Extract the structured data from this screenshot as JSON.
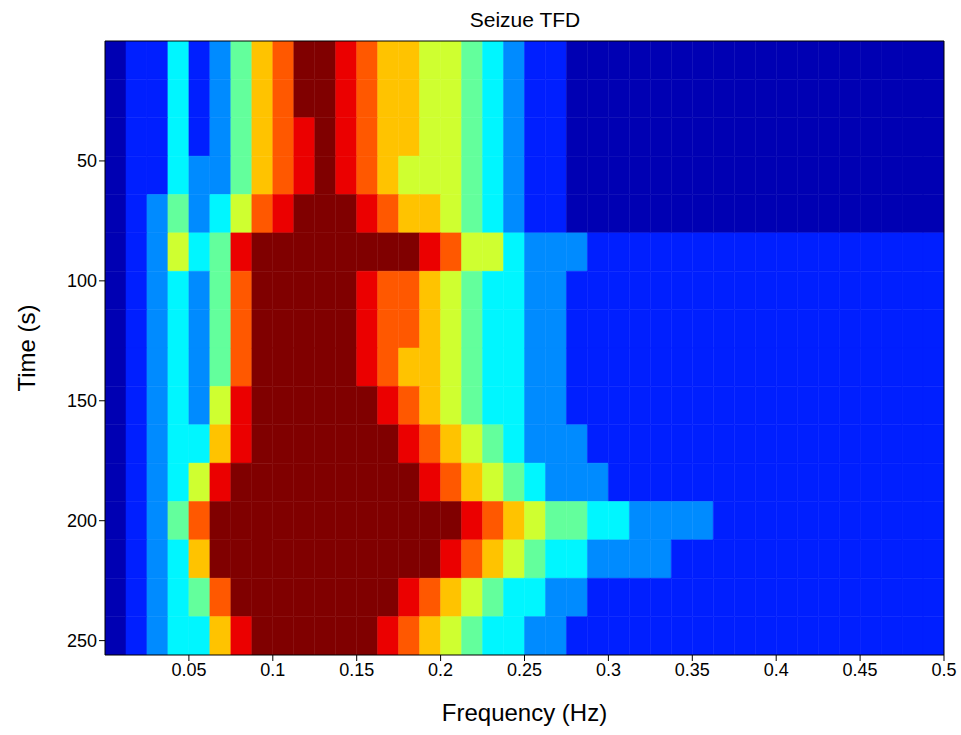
{
  "chart_data": {
    "type": "heatmap",
    "title": "Seizue TFD",
    "x_label": "Frequency (Hz)",
    "y_label": "Time (s)",
    "xlim": [
      0,
      0.5
    ],
    "xticks": [
      0.05,
      0.1,
      0.15,
      0.2,
      0.25,
      0.3,
      0.35,
      0.4,
      0.45,
      0.5
    ],
    "ylim": [
      0,
      256
    ],
    "yticks": [
      50,
      100,
      150,
      200,
      250
    ],
    "freq_bins": [
      0,
      0.0125,
      0.025,
      0.0375,
      0.05,
      0.0625,
      0.075,
      0.0875,
      0.1,
      0.1125,
      0.125,
      0.1375,
      0.15,
      0.1625,
      0.175,
      0.1875,
      0.2,
      0.2125,
      0.225,
      0.2375,
      0.25,
      0.2625,
      0.275,
      0.2875,
      0.3,
      0.3125,
      0.325,
      0.3375,
      0.35,
      0.3625,
      0.375,
      0.3875,
      0.4,
      0.4125,
      0.425,
      0.4375,
      0.45,
      0.4625,
      0.475,
      0.4875,
      0.5
    ],
    "time_bins": [
      0,
      16,
      32,
      48,
      64,
      80,
      96,
      112,
      128,
      144,
      160,
      176,
      192,
      208,
      224,
      240,
      256
    ],
    "cells": [
      [
        0,
        1,
        1,
        3,
        1,
        2,
        4,
        6,
        7,
        9,
        9,
        8,
        7,
        6,
        6,
        5,
        5,
        4,
        3,
        2,
        1,
        1,
        0,
        0,
        0,
        0,
        0,
        0,
        0,
        0,
        0,
        0,
        0,
        0,
        0,
        0,
        0,
        0,
        0,
        0
      ],
      [
        0,
        1,
        1,
        3,
        1,
        2,
        4,
        6,
        7,
        9,
        9,
        8,
        7,
        6,
        6,
        5,
        5,
        4,
        3,
        2,
        1,
        1,
        0,
        0,
        0,
        0,
        0,
        0,
        0,
        0,
        0,
        0,
        0,
        0,
        0,
        0,
        0,
        0,
        0,
        0
      ],
      [
        0,
        1,
        1,
        3,
        1,
        2,
        4,
        6,
        7,
        8,
        9,
        8,
        7,
        6,
        6,
        5,
        5,
        4,
        3,
        2,
        1,
        1,
        0,
        0,
        0,
        0,
        0,
        0,
        0,
        0,
        0,
        0,
        0,
        0,
        0,
        0,
        0,
        0,
        0,
        0
      ],
      [
        0,
        1,
        1,
        3,
        2,
        2,
        4,
        6,
        7,
        8,
        9,
        8,
        7,
        6,
        5,
        5,
        5,
        4,
        3,
        2,
        1,
        1,
        0,
        0,
        0,
        0,
        0,
        0,
        0,
        0,
        0,
        0,
        0,
        0,
        0,
        0,
        0,
        0,
        0,
        0
      ],
      [
        0,
        1,
        2,
        4,
        2,
        3,
        5,
        7,
        8,
        9,
        9,
        9,
        8,
        7,
        6,
        6,
        5,
        4,
        3,
        2,
        1,
        1,
        0,
        0,
        0,
        0,
        0,
        0,
        0,
        0,
        0,
        0,
        0,
        0,
        0,
        0,
        0,
        0,
        0,
        0
      ],
      [
        0,
        1,
        2,
        5,
        3,
        4,
        8,
        9,
        9,
        9,
        9,
        9,
        9,
        9,
        9,
        8,
        7,
        5,
        5,
        3,
        2,
        2,
        2,
        1,
        1,
        1,
        1,
        1,
        1,
        1,
        1,
        1,
        1,
        1,
        1,
        1,
        1,
        1,
        1,
        1
      ],
      [
        0,
        1,
        2,
        3,
        2,
        4,
        7,
        9,
        9,
        9,
        9,
        9,
        8,
        7,
        7,
        6,
        5,
        4,
        3,
        3,
        2,
        2,
        1,
        1,
        1,
        1,
        1,
        1,
        1,
        1,
        1,
        1,
        1,
        1,
        1,
        1,
        1,
        1,
        1,
        1
      ],
      [
        0,
        1,
        2,
        3,
        2,
        4,
        7,
        9,
        9,
        9,
        9,
        9,
        8,
        7,
        7,
        6,
        5,
        4,
        3,
        3,
        2,
        2,
        1,
        1,
        1,
        1,
        1,
        1,
        1,
        1,
        1,
        1,
        1,
        1,
        1,
        1,
        1,
        1,
        1,
        1
      ],
      [
        0,
        1,
        2,
        3,
        2,
        4,
        7,
        9,
        9,
        9,
        9,
        9,
        8,
        7,
        6,
        6,
        5,
        4,
        3,
        3,
        2,
        2,
        1,
        1,
        1,
        1,
        1,
        1,
        1,
        1,
        1,
        1,
        1,
        1,
        1,
        1,
        1,
        1,
        1,
        1
      ],
      [
        0,
        1,
        2,
        3,
        2,
        5,
        8,
        9,
        9,
        9,
        9,
        9,
        9,
        8,
        7,
        6,
        5,
        4,
        3,
        3,
        2,
        2,
        1,
        1,
        1,
        1,
        1,
        1,
        1,
        1,
        1,
        1,
        1,
        1,
        1,
        1,
        1,
        1,
        1,
        1
      ],
      [
        0,
        1,
        2,
        3,
        3,
        6,
        8,
        9,
        9,
        9,
        9,
        9,
        9,
        9,
        8,
        7,
        6,
        5,
        4,
        3,
        2,
        2,
        2,
        1,
        1,
        1,
        1,
        1,
        1,
        1,
        1,
        1,
        1,
        1,
        1,
        1,
        1,
        1,
        1,
        1
      ],
      [
        0,
        1,
        2,
        3,
        5,
        8,
        9,
        9,
        9,
        9,
        9,
        9,
        9,
        9,
        9,
        8,
        7,
        6,
        5,
        4,
        3,
        2,
        2,
        2,
        1,
        1,
        1,
        1,
        1,
        1,
        1,
        1,
        1,
        1,
        1,
        1,
        1,
        1,
        1,
        1
      ],
      [
        0,
        1,
        2,
        4,
        7,
        9,
        9,
        9,
        9,
        9,
        9,
        9,
        9,
        9,
        9,
        9,
        9,
        8,
        7,
        6,
        5,
        4,
        4,
        3,
        3,
        2,
        2,
        2,
        2,
        1,
        1,
        1,
        1,
        1,
        1,
        1,
        1,
        1,
        1,
        1
      ],
      [
        0,
        1,
        2,
        3,
        6,
        9,
        9,
        9,
        9,
        9,
        9,
        9,
        9,
        9,
        9,
        9,
        8,
        7,
        6,
        5,
        4,
        3,
        3,
        2,
        2,
        2,
        2,
        1,
        1,
        1,
        1,
        1,
        1,
        1,
        1,
        1,
        1,
        1,
        1,
        1
      ],
      [
        0,
        1,
        2,
        3,
        4,
        7,
        9,
        9,
        9,
        9,
        9,
        9,
        9,
        9,
        8,
        7,
        6,
        5,
        4,
        3,
        3,
        2,
        2,
        1,
        1,
        1,
        1,
        1,
        1,
        1,
        1,
        1,
        1,
        1,
        1,
        1,
        1,
        1,
        1,
        1
      ],
      [
        0,
        1,
        2,
        3,
        3,
        6,
        8,
        9,
        9,
        9,
        9,
        9,
        9,
        8,
        7,
        6,
        5,
        4,
        3,
        3,
        2,
        2,
        1,
        1,
        1,
        1,
        1,
        1,
        1,
        1,
        1,
        1,
        1,
        1,
        1,
        1,
        1,
        1,
        1,
        1
      ]
    ]
  }
}
